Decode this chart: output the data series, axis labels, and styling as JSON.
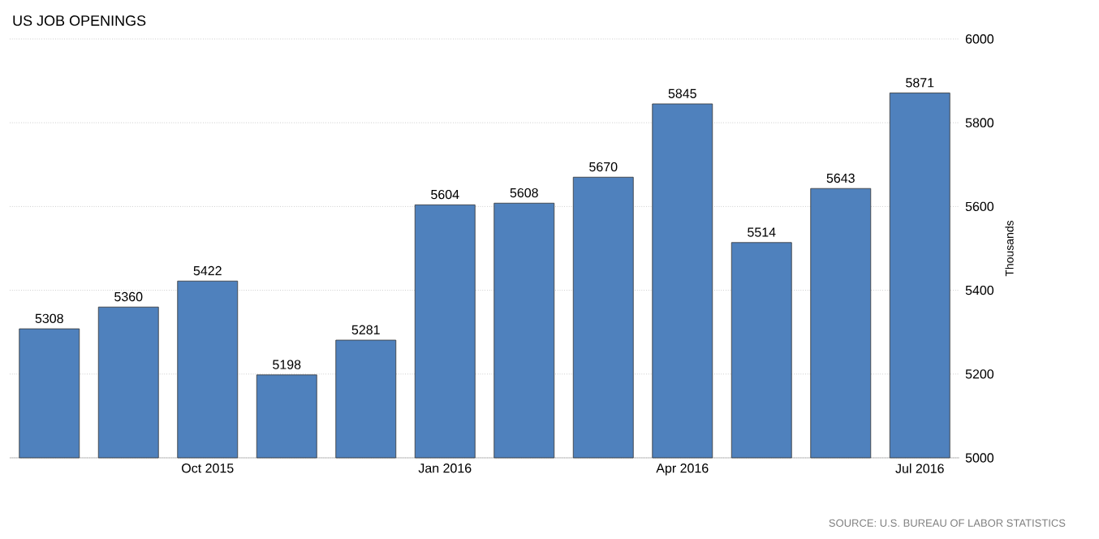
{
  "chart_data": {
    "type": "bar",
    "title": "US JOB OPENINGS",
    "ylabel": "Thousands",
    "annotations": [
      "SOURCE: U.S. BUREAU OF LABOR STATISTICS"
    ],
    "categories": [
      null,
      null,
      "Oct 2015",
      null,
      null,
      "Jan 2016",
      null,
      null,
      "Apr 2016",
      null,
      null,
      "Jul 2016"
    ],
    "values": [
      5308,
      5360,
      5422,
      5198,
      5281,
      5604,
      5608,
      5670,
      5845,
      5514,
      5643,
      5871
    ],
    "color": "#4f81bd",
    "ylim": [
      5000,
      6000
    ],
    "yticks": [
      5000,
      5200,
      5400,
      5600,
      5800,
      6000
    ],
    "grid": "y",
    "data_labels": true
  }
}
